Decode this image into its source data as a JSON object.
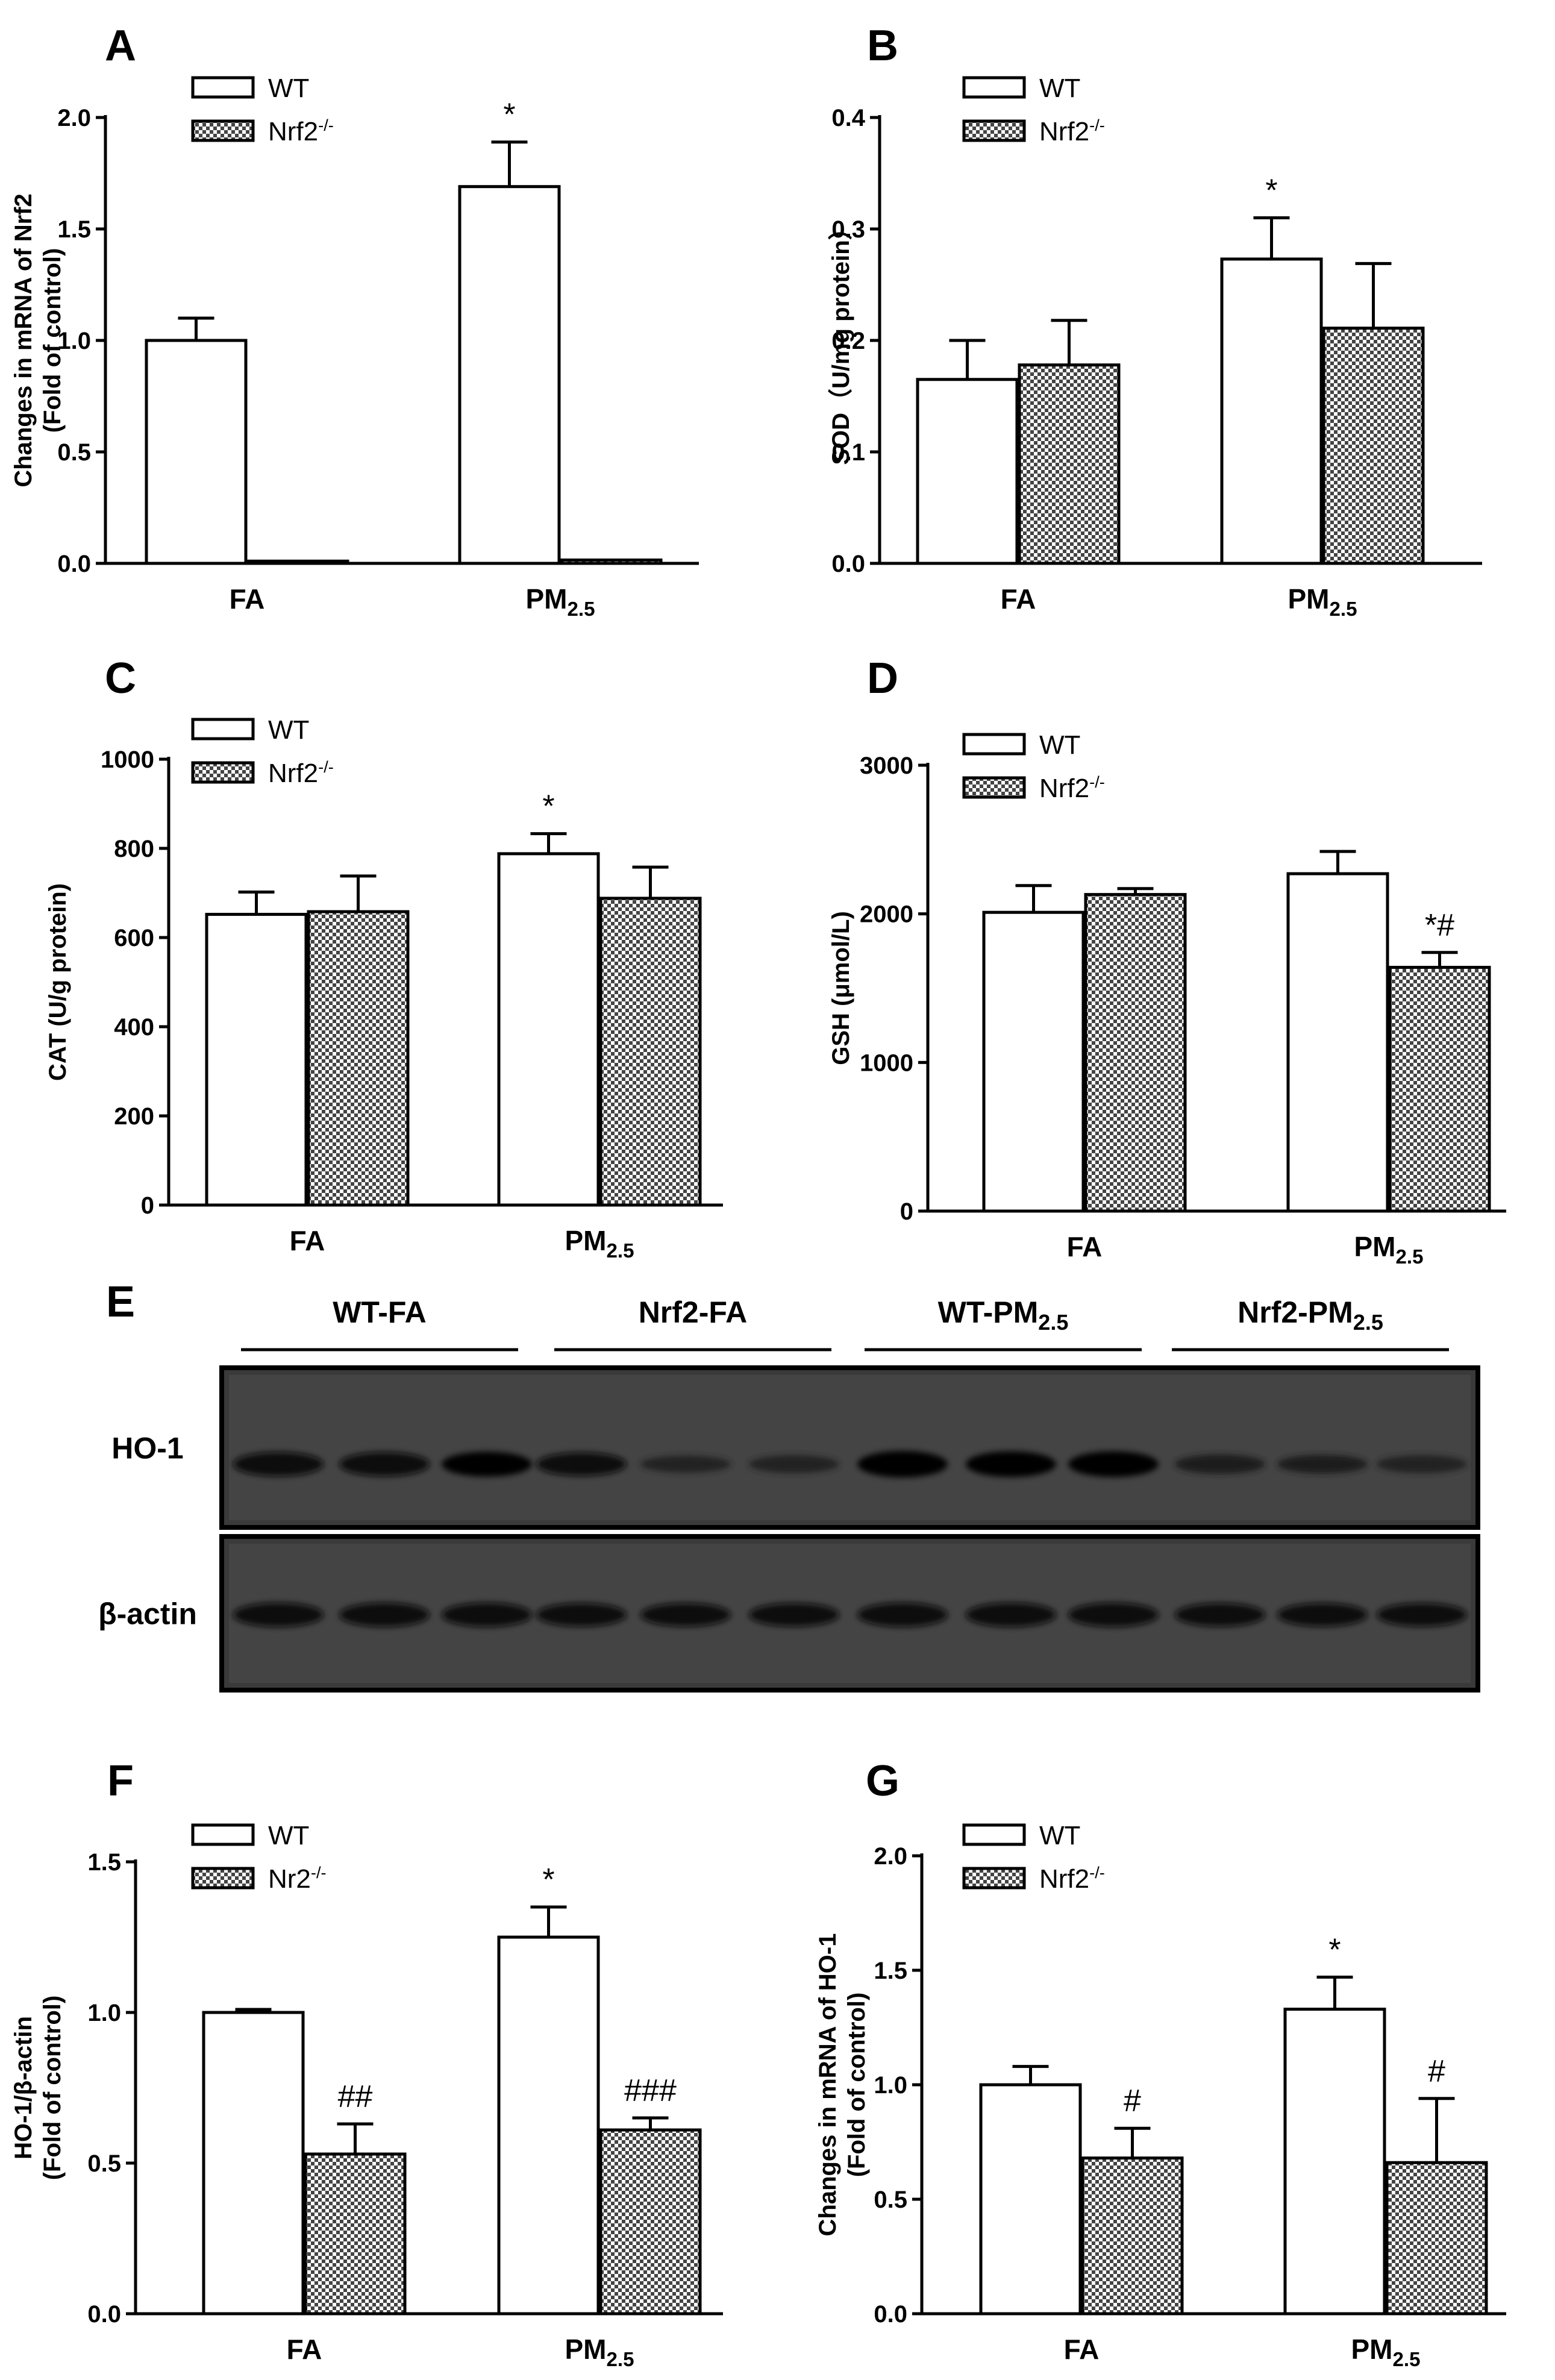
{
  "colors": {
    "wt_fill": "#ffffff",
    "ko_pattern": "checkerboard",
    "blot_bg": "#3a3a3a"
  },
  "chart_data": [
    {
      "panel": "A",
      "type": "bar",
      "categories": [
        "FA",
        "PM2.5"
      ],
      "ylabel_lines": [
        "Changes in mRNA of Nrf2",
        "(Fold of control)"
      ],
      "ylim": [
        0,
        2.0
      ],
      "yticks": [
        "0.0",
        "0.5",
        "1.0",
        "1.5",
        "2.0"
      ],
      "legend": [
        "WT",
        "Nrf2-/-"
      ],
      "series": [
        {
          "name": "WT",
          "values": [
            1.0,
            1.69
          ],
          "errors": [
            0.1,
            0.2
          ],
          "annotations": [
            "",
            "*"
          ]
        },
        {
          "name": "Nrf2-/-",
          "values": [
            0.01,
            0.015
          ],
          "errors": [
            0,
            0
          ],
          "annotations": [
            "",
            ""
          ]
        }
      ]
    },
    {
      "panel": "B",
      "type": "bar",
      "categories": [
        "FA",
        "PM2.5"
      ],
      "ylabel_lines": [
        "SOD（U/mg protein）"
      ],
      "ylim": [
        0,
        0.4
      ],
      "yticks": [
        "0.0",
        "0.1",
        "0.2",
        "0.3",
        "0.4"
      ],
      "legend": [
        "WT",
        "Nrf2-/-"
      ],
      "series": [
        {
          "name": "WT",
          "values": [
            0.165,
            0.273
          ],
          "errors": [
            0.035,
            0.037
          ],
          "annotations": [
            "",
            "*"
          ]
        },
        {
          "name": "Nrf2-/-",
          "values": [
            0.178,
            0.211
          ],
          "errors": [
            0.04,
            0.058
          ],
          "annotations": [
            "",
            ""
          ]
        }
      ]
    },
    {
      "panel": "C",
      "type": "bar",
      "categories": [
        "FA",
        "PM2.5"
      ],
      "ylabel_lines": [
        "CAT (U/g protein)"
      ],
      "ylim": [
        0,
        1000
      ],
      "yticks": [
        "0",
        "200",
        "400",
        "600",
        "800",
        "1000"
      ],
      "legend": [
        "WT",
        "Nrf2-/-"
      ],
      "series": [
        {
          "name": "WT",
          "values": [
            652,
            788
          ],
          "errors": [
            50,
            45
          ],
          "annotations": [
            "",
            "*"
          ]
        },
        {
          "name": "Nrf2-/-",
          "values": [
            658,
            688
          ],
          "errors": [
            80,
            70
          ],
          "annotations": [
            "",
            ""
          ]
        }
      ]
    },
    {
      "panel": "D",
      "type": "bar",
      "categories": [
        "FA",
        "PM2.5"
      ],
      "ylabel_lines": [
        "GSH (μmol/L)"
      ],
      "ylim": [
        0,
        3000
      ],
      "yticks": [
        "0",
        "1000",
        "2000",
        "3000"
      ],
      "legend": [
        "WT",
        "Nrf2-/-"
      ],
      "series": [
        {
          "name": "WT",
          "values": [
            2010,
            2270
          ],
          "errors": [
            180,
            150
          ],
          "annotations": [
            "",
            ""
          ]
        },
        {
          "name": "Nrf2-/-",
          "values": [
            2130,
            1640
          ],
          "errors": [
            40,
            100
          ],
          "annotations": [
            "",
            "*#"
          ]
        }
      ]
    },
    {
      "panel": "F",
      "type": "bar",
      "categories": [
        "FA",
        "PM2.5"
      ],
      "ylabel_lines": [
        "HO-1/β-actin",
        "(Fold of control)"
      ],
      "ylim": [
        0,
        1.5
      ],
      "yticks": [
        "0.0",
        "0.5",
        "1.0",
        "1.5"
      ],
      "legend": [
        "WT",
        "Nr2-/-"
      ],
      "series": [
        {
          "name": "WT",
          "values": [
            1.0,
            1.25
          ],
          "errors": [
            0.01,
            0.1
          ],
          "annotations": [
            "",
            "*"
          ]
        },
        {
          "name": "Nr2-/-",
          "values": [
            0.53,
            0.61
          ],
          "errors": [
            0.1,
            0.04
          ],
          "annotations": [
            "##",
            "###"
          ]
        }
      ]
    },
    {
      "panel": "G",
      "type": "bar",
      "categories": [
        "FA",
        "PM2.5"
      ],
      "ylabel_lines": [
        "Changes in mRNA of HO-1",
        "(Fold of control)"
      ],
      "ylim": [
        0,
        2.0
      ],
      "yticks": [
        "0.0",
        "0.5",
        "1.0",
        "1.5",
        "2.0"
      ],
      "legend": [
        "WT",
        "Nrf2-/-"
      ],
      "series": [
        {
          "name": "WT",
          "values": [
            1.0,
            1.33
          ],
          "errors": [
            0.08,
            0.14
          ],
          "annotations": [
            "",
            "*"
          ]
        },
        {
          "name": "Nrf2-/-",
          "values": [
            0.68,
            0.66
          ],
          "errors": [
            0.13,
            0.28
          ],
          "annotations": [
            "#",
            "#"
          ]
        }
      ]
    }
  ],
  "blot": {
    "panel": "E",
    "groups": [
      "WT-FA",
      "Nrf2-FA",
      "WT-PM2.5",
      "Nrf2-PM2.5"
    ],
    "rows": [
      {
        "label": "HO-1",
        "intensities": [
          0.85,
          0.85,
          0.9,
          0.8,
          0.4,
          0.45,
          1.0,
          0.95,
          0.95,
          0.55,
          0.5,
          0.45
        ]
      },
      {
        "label": "β-actin",
        "intensities": [
          0.85,
          0.85,
          0.85,
          0.8,
          0.8,
          0.8,
          0.85,
          0.85,
          0.85,
          0.8,
          0.8,
          0.8
        ]
      }
    ]
  }
}
